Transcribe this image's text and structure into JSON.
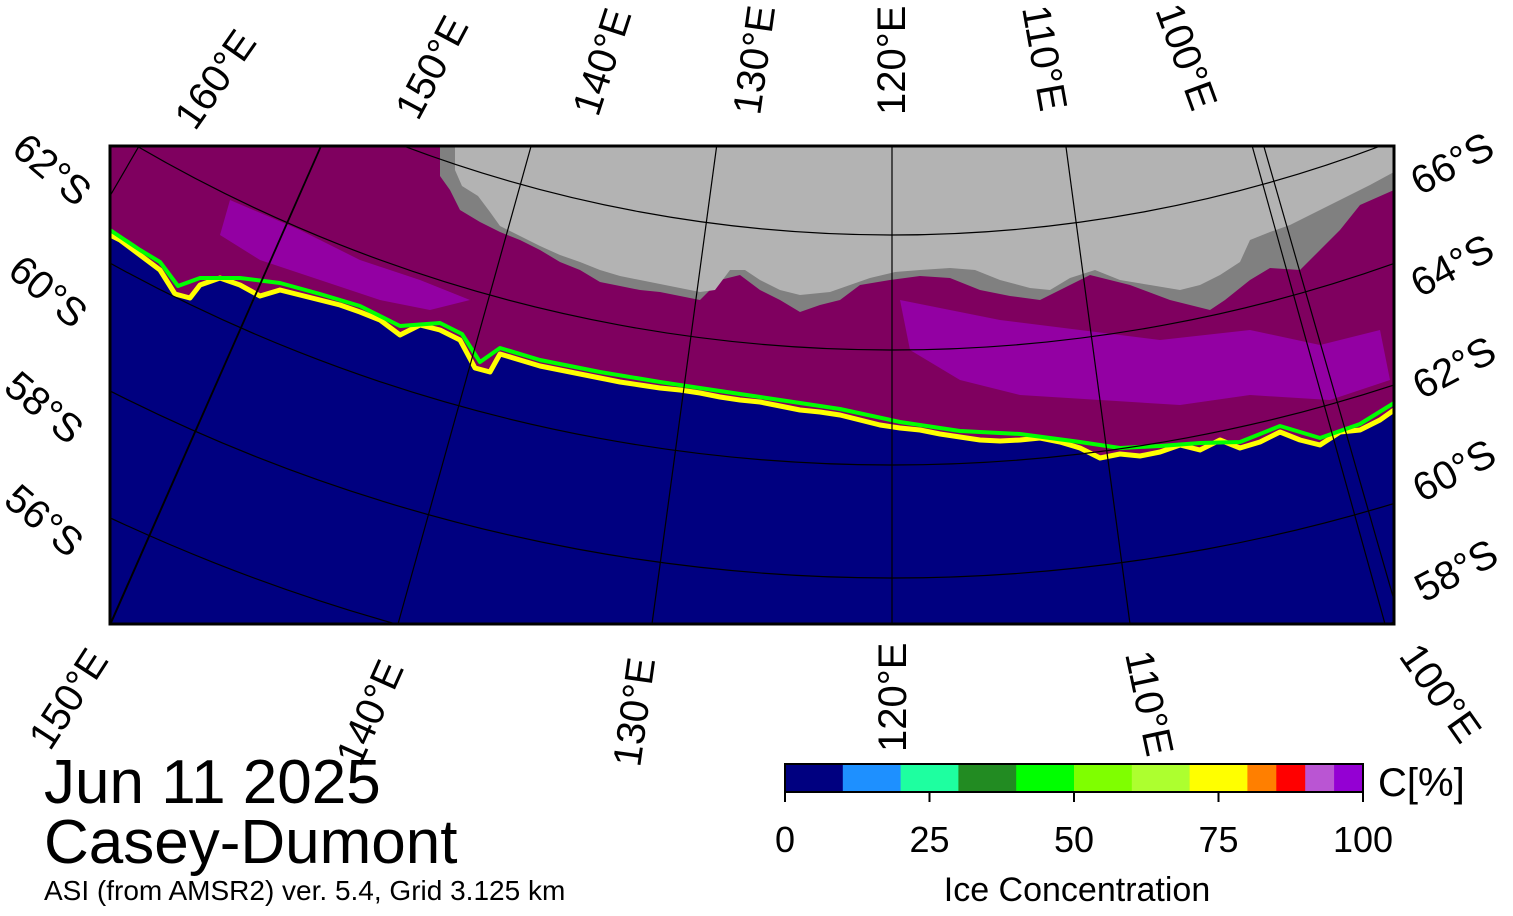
{
  "map": {
    "colors": {
      "ocean": "#000080",
      "land": "#b3b3b3",
      "ice_shelf": "#808080",
      "ice_core": "#7f005f",
      "ice_high": "#9e00c8",
      "frame": "#000000"
    },
    "top_lon_labels": [
      "160°E",
      "150°E",
      "140°E",
      "130°E",
      "120°E",
      "110°E",
      "100°E"
    ],
    "bottom_lon_labels": [
      "150°E",
      "140°E",
      "130°E",
      "120°E",
      "110°E",
      "100°E"
    ],
    "left_lat_labels": [
      "62°S",
      "60°S",
      "58°S",
      "56°S"
    ],
    "right_lat_labels": [
      "66°S",
      "64°S",
      "62°S",
      "60°S",
      "58°S"
    ]
  },
  "caption": {
    "date": "Jun 11 2025",
    "region": "Casey-Dumont",
    "source": "ASI (from AMSR2) ver. 5.4,  Grid 3.125 km"
  },
  "colorbar": {
    "unit": "C[%]",
    "title": "Ice Concentration",
    "ticks": [
      "0",
      "25",
      "50",
      "75",
      "100"
    ],
    "tick_values": [
      0,
      25,
      50,
      75,
      100
    ],
    "range": [
      0,
      100
    ],
    "bins": [
      {
        "from": 0,
        "to": 10,
        "color": "#000080"
      },
      {
        "from": 10,
        "to": 20,
        "color": "#1e90ff"
      },
      {
        "from": 20,
        "to": 30,
        "color": "#1effa0"
      },
      {
        "from": 30,
        "to": 40,
        "color": "#228b22"
      },
      {
        "from": 40,
        "to": 50,
        "color": "#00ff00"
      },
      {
        "from": 50,
        "to": 60,
        "color": "#7fff00"
      },
      {
        "from": 60,
        "to": 70,
        "color": "#adff2f"
      },
      {
        "from": 70,
        "to": 75,
        "color": "#ffff00"
      },
      {
        "from": 75,
        "to": 80,
        "color": "#ffff00"
      },
      {
        "from": 80,
        "to": 85,
        "color": "#ff7f00"
      },
      {
        "from": 85,
        "to": 90,
        "color": "#ff0000"
      },
      {
        "from": 90,
        "to": 95,
        "color": "#ba55d3"
      },
      {
        "from": 95,
        "to": 100,
        "color": "#9400d3"
      }
    ]
  }
}
